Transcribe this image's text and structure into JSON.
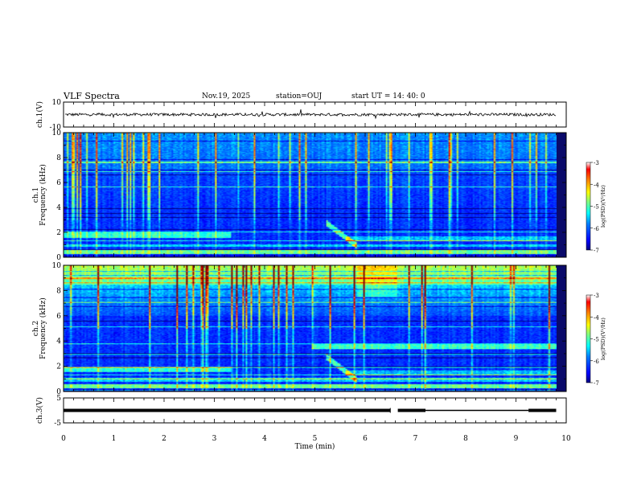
{
  "header": {
    "title": "VLF Spectra",
    "date": "Nov.19, 2025",
    "station": "station=OUJ",
    "start": "start  UT =   14: 40: 0"
  },
  "chart_data": [
    {
      "type": "line",
      "name": "ch1-waveform",
      "ylabel": "ch.1(V)",
      "ylim": [
        -10,
        10
      ],
      "yticks": [
        10,
        -10
      ],
      "x_range_min": [
        0,
        9.8
      ],
      "mean_level": 0
    },
    {
      "type": "heatmap",
      "name": "ch1-spectrogram",
      "ylabel": "ch.1\nFrequency  (kHz)",
      "ylabel_lines": [
        "ch.1",
        "Frequency  (kHz)"
      ],
      "ylim": [
        0,
        10
      ],
      "yticks": [
        0,
        2,
        4,
        6,
        8,
        10
      ],
      "x_range_min": [
        0,
        9.8
      ],
      "colorbar": {
        "label": "log(PSD)(V²/Hz)",
        "ticks": [
          -3,
          -4,
          -5,
          -6,
          -7
        ],
        "range": [
          -7,
          -3
        ]
      }
    },
    {
      "type": "heatmap",
      "name": "ch2-spectrogram",
      "ylabel": "ch.2\nFrequency  (kHz)",
      "ylabel_lines": [
        "ch.2",
        "Frequency  (kHz)"
      ],
      "ylim": [
        0,
        10
      ],
      "yticks": [
        0,
        2,
        4,
        6,
        8,
        10
      ],
      "x_range_min": [
        0,
        9.8
      ],
      "colorbar": {
        "label": "log(PSD)(V²/Hz)",
        "ticks": [
          -3,
          -4,
          -5,
          -6,
          -7
        ],
        "range": [
          -7,
          -3
        ]
      }
    },
    {
      "type": "line",
      "name": "ch3-waveform",
      "ylabel": "ch.3(V)",
      "ylim": [
        -5,
        5
      ],
      "yticks": [
        5,
        -5
      ],
      "xlabel": "Time  (min)",
      "xlim": [
        0,
        10
      ],
      "xticks": [
        0,
        1,
        2,
        3,
        4,
        5,
        6,
        7,
        8,
        9,
        10
      ],
      "x_range_min": [
        0,
        9.8
      ],
      "level": 0
    }
  ],
  "colors": {
    "axis": "#000000",
    "grid_line": "#c8e64a",
    "cmap": [
      "#000080",
      "#0000ff",
      "#0080ff",
      "#00ffff",
      "#80ff80",
      "#ffff00",
      "#ff8000",
      "#ff0000",
      "#800000"
    ]
  }
}
